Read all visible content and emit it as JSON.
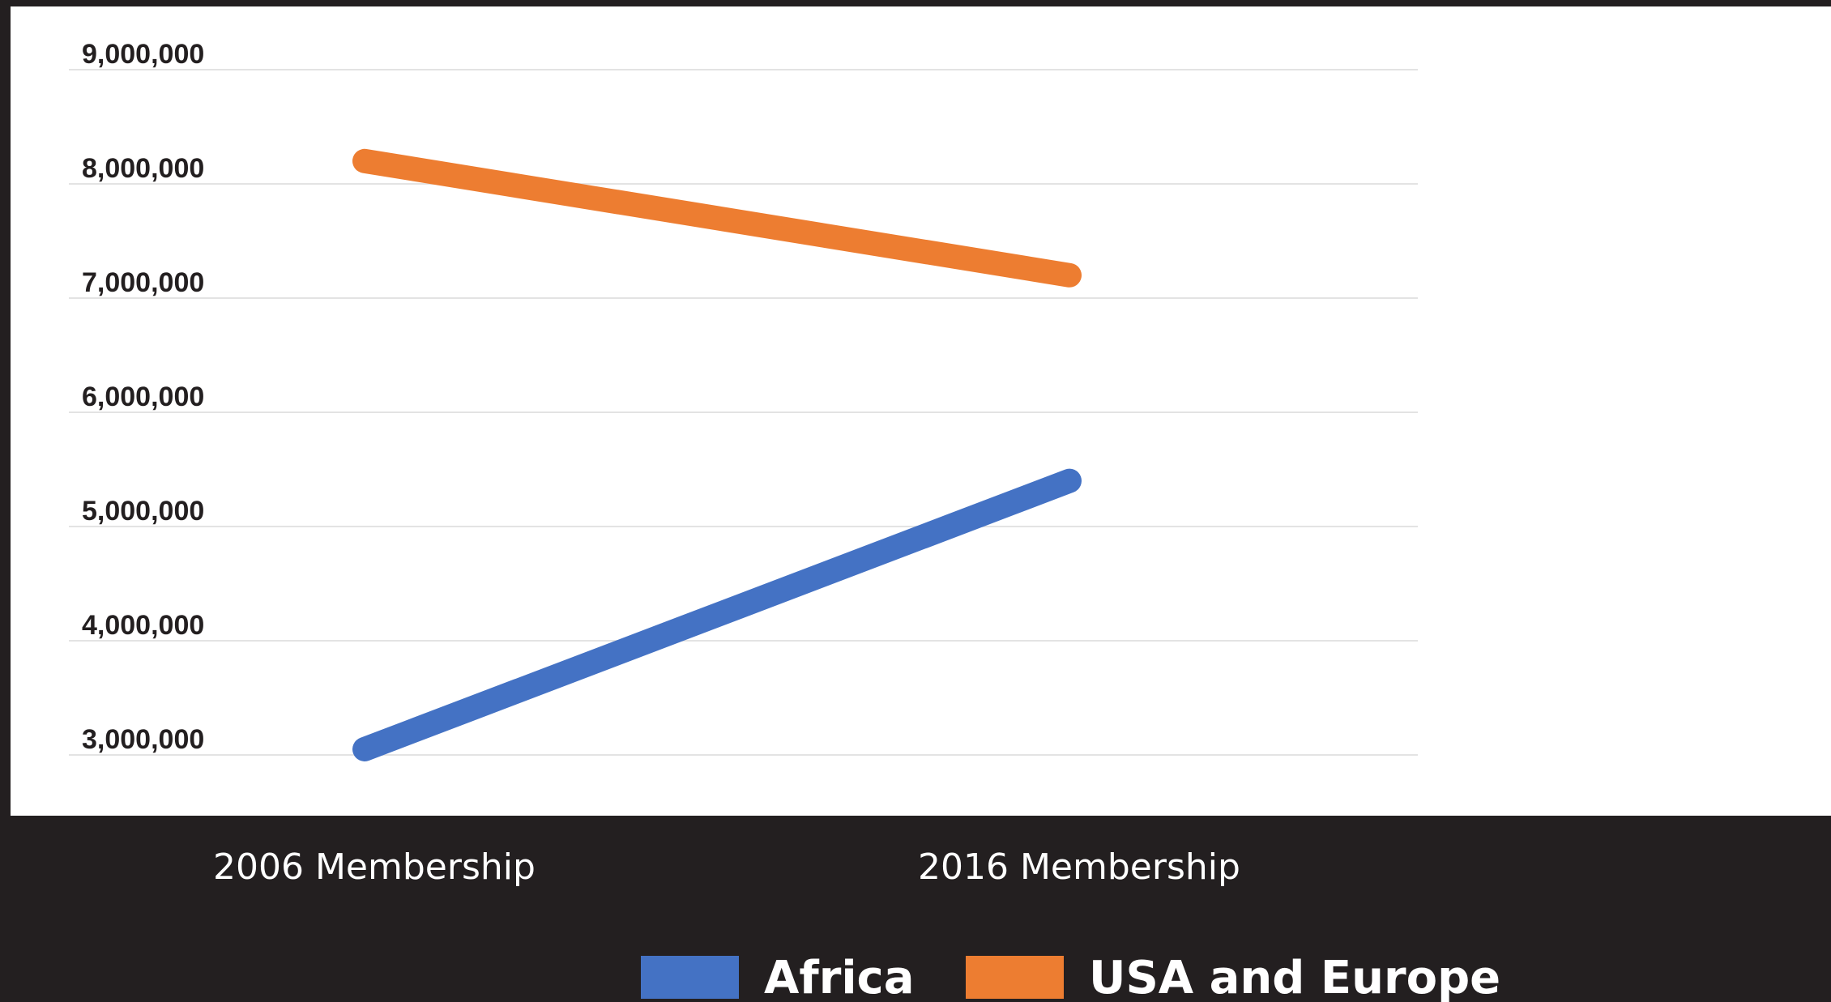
{
  "chart_data": {
    "type": "line",
    "title": "",
    "xlabel": "",
    "ylabel": "",
    "categories": [
      "2006 Membership",
      "2016 Membership"
    ],
    "y_ticks": [
      "3,000,000",
      "4,000,000",
      "5,000,000",
      "6,000,000",
      "7,000,000",
      "8,000,000",
      "9,000,000"
    ],
    "ylim": [
      3000000,
      9000000
    ],
    "grid": true,
    "legend_position": "bottom",
    "series": [
      {
        "name": "Africa",
        "values": [
          3050000,
          5400000
        ],
        "color": "#4472c4"
      },
      {
        "name": "USA and Europe",
        "values": [
          8200000,
          7200000
        ],
        "color": "#ed7d31"
      }
    ]
  }
}
